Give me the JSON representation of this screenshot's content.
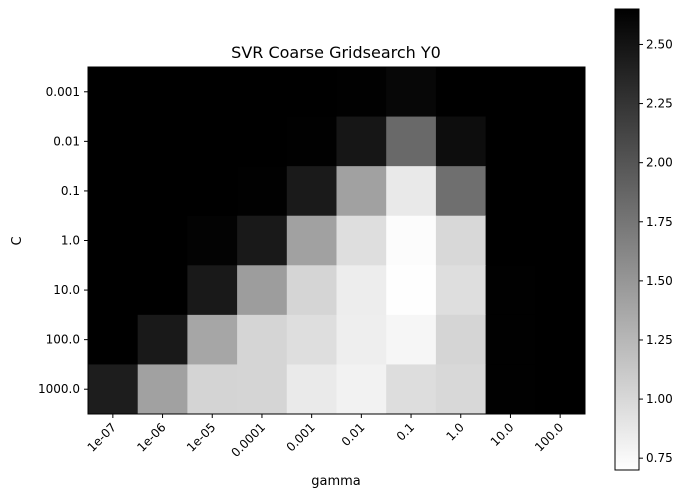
{
  "chart_data": {
    "type": "heatmap",
    "title": "SVR Coarse Gridsearch Y0",
    "xlabel": "gamma",
    "ylabel": "C",
    "x_categories": [
      "1e-07",
      "1e-06",
      "1e-05",
      "0.0001",
      "0.001",
      "0.01",
      "0.1",
      "1.0",
      "10.0",
      "100.0"
    ],
    "y_categories": [
      "0.001",
      "0.01",
      "0.1",
      "1.0",
      "10.0",
      "100.0",
      "1000.0"
    ],
    "values": [
      [
        2.65,
        2.65,
        2.65,
        2.65,
        2.65,
        2.64,
        2.6,
        2.65,
        2.65,
        2.65
      ],
      [
        2.65,
        2.65,
        2.65,
        2.65,
        2.64,
        2.48,
        1.85,
        2.55,
        2.65,
        2.65
      ],
      [
        2.65,
        2.65,
        2.65,
        2.64,
        2.45,
        1.42,
        0.87,
        1.8,
        2.65,
        2.65
      ],
      [
        2.65,
        2.65,
        2.63,
        2.46,
        1.42,
        0.95,
        0.72,
        1.0,
        2.65,
        2.65
      ],
      [
        2.65,
        2.65,
        2.46,
        1.45,
        1.02,
        0.84,
        0.71,
        0.95,
        2.64,
        2.65
      ],
      [
        2.65,
        2.46,
        1.38,
        1.02,
        0.95,
        0.83,
        0.77,
        1.02,
        2.64,
        2.65
      ],
      [
        2.43,
        1.42,
        1.03,
        1.02,
        0.86,
        0.8,
        0.96,
        1.0,
        2.64,
        2.65
      ]
    ],
    "colormap": "gray_r",
    "colorbar": {
      "vmin": 0.7,
      "vmax": 2.65,
      "ticks": [
        "0.75",
        "1.00",
        "1.25",
        "1.50",
        "1.75",
        "2.00",
        "2.25",
        "2.50"
      ]
    }
  }
}
